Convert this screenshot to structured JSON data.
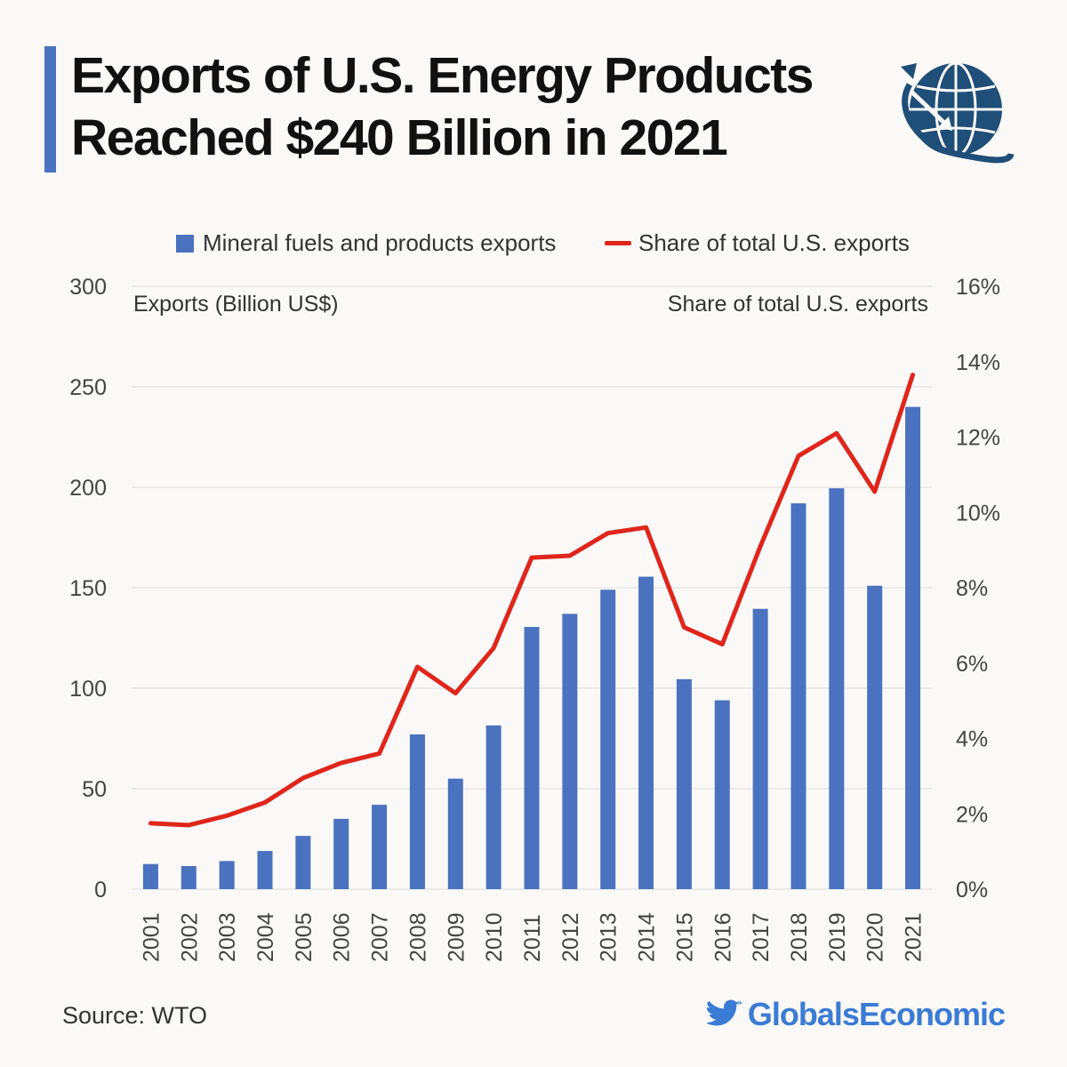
{
  "header": {
    "title_line1": "Exports of U.S. Energy Products",
    "title_line2": "Reached $240 Billion in 2021",
    "logo_icon": "globe-arrow-icon"
  },
  "colors": {
    "accent": "#4a72be",
    "bar": "#4a72be",
    "line": "#e0251b",
    "brand": "#3a7bd5",
    "logo": "#1f4e79"
  },
  "chart_data": {
    "type": "bar",
    "categories": [
      "2001",
      "2002",
      "2003",
      "2004",
      "2005",
      "2006",
      "2007",
      "2008",
      "2009",
      "2010",
      "2011",
      "2012",
      "2013",
      "2014",
      "2015",
      "2016",
      "2017",
      "2018",
      "2019",
      "2020",
      "2021"
    ],
    "series": [
      {
        "name": "Mineral fuels and products exports",
        "type": "bar",
        "axis": "left",
        "values": [
          12.5,
          11.5,
          14,
          19,
          26.5,
          35,
          42,
          77,
          55,
          81.5,
          130.5,
          137,
          149,
          155.5,
          104.5,
          94,
          139.5,
          192,
          199.5,
          151,
          240
        ]
      },
      {
        "name": "Share of total U.S. exports",
        "type": "line",
        "axis": "right",
        "values": [
          1.75,
          1.7,
          1.95,
          2.3,
          2.95,
          3.35,
          3.6,
          5.9,
          5.2,
          6.4,
          8.8,
          8.85,
          9.45,
          9.6,
          6.95,
          6.5,
          9.1,
          11.5,
          12.1,
          10.55,
          13.65
        ]
      }
    ],
    "ylabel": "Exports (Billion US$)",
    "y2label": "Share of total U.S. exports",
    "ylim": [
      0,
      300
    ],
    "y2lim": [
      0,
      16
    ],
    "yticks": [
      "0",
      "50",
      "100",
      "150",
      "200",
      "250",
      "300"
    ],
    "y2ticks": [
      "0%",
      "2%",
      "4%",
      "6%",
      "8%",
      "10%",
      "12%",
      "14%",
      "16%"
    ],
    "grid": true,
    "legend_position": "top"
  },
  "footer": {
    "source": "Source: WTO",
    "brand": "GlobalsEconomic",
    "brand_icon": "twitter-bird-icon"
  }
}
